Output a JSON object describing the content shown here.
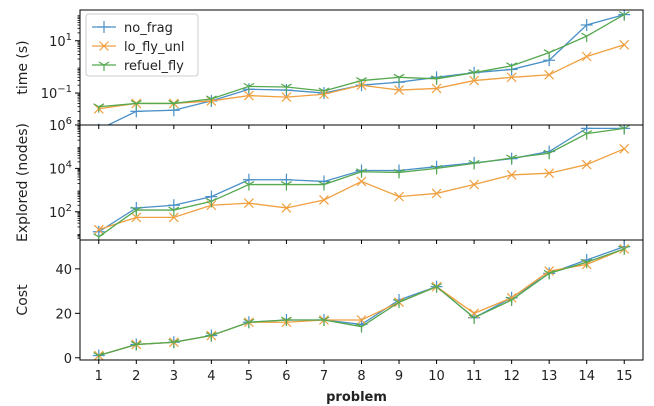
{
  "chart_data": {
    "type": "line",
    "xlabel": "problem",
    "x": [
      1,
      2,
      3,
      4,
      5,
      6,
      7,
      8,
      9,
      10,
      11,
      12,
      13,
      14,
      15
    ],
    "x_ticks": [
      "1",
      "2",
      "3",
      "4",
      "5",
      "6",
      "7",
      "8",
      "9",
      "10",
      "11",
      "12",
      "13",
      "14",
      "15"
    ],
    "xlim": [
      0.5,
      15.5
    ],
    "legend": {
      "position": "top-left",
      "panel": "time"
    },
    "series_styles": [
      {
        "name": "no_frag",
        "color": "#4a90c8",
        "marker": "plus"
      },
      {
        "name": "lo_fly_unl",
        "color": "#f0a040",
        "marker": "x"
      },
      {
        "name": "refuel_fly",
        "color": "#55a84f",
        "marker": "tri_down"
      }
    ],
    "panels": [
      {
        "id": "time",
        "ylabel": "time (s)",
        "yscale": "log",
        "ylim": [
          0.006,
          150
        ],
        "yticks": [
          {
            "value": 0.1,
            "base": "10",
            "exp": "−1"
          },
          {
            "value": 10,
            "base": "10",
            "exp": "1"
          }
        ],
        "series": [
          {
            "name": "no_frag",
            "values": [
              0.004,
              0.02,
              0.022,
              0.05,
              0.14,
              0.13,
              0.1,
              0.2,
              0.26,
              0.4,
              0.6,
              0.8,
              1.8,
              40,
              100
            ]
          },
          {
            "name": "lo_fly_unl",
            "values": [
              0.025,
              0.04,
              0.04,
              0.05,
              0.08,
              0.07,
              0.09,
              0.2,
              0.13,
              0.15,
              0.3,
              0.4,
              0.5,
              2.5,
              7
            ]
          },
          {
            "name": "refuel_fly",
            "values": [
              0.03,
              0.04,
              0.04,
              0.06,
              0.18,
              0.17,
              0.12,
              0.3,
              0.4,
              0.35,
              0.6,
              1.1,
              3.5,
              15,
              100
            ]
          }
        ]
      },
      {
        "id": "explored",
        "ylabel": "Explored (nodes)",
        "yscale": "log",
        "ylim": [
          5,
          1000000
        ],
        "yticks": [
          {
            "value": 100,
            "base": "10",
            "exp": "2"
          },
          {
            "value": 10000,
            "base": "10",
            "exp": "4"
          },
          {
            "value": 1000000,
            "base": "10",
            "exp": "6"
          }
        ],
        "series": [
          {
            "name": "no_frag",
            "values": [
              12,
              150,
              200,
              500,
              3000,
              3000,
              2500,
              8000,
              8000,
              12000,
              18000,
              28000,
              60000,
              700000,
              700000
            ]
          },
          {
            "name": "lo_fly_unl",
            "values": [
              15,
              55,
              55,
              200,
              250,
              150,
              350,
              2500,
              500,
              700,
              1800,
              5000,
              6000,
              15000,
              80000
            ]
          },
          {
            "name": "refuel_fly",
            "values": [
              7,
              120,
              120,
              300,
              1800,
              1800,
              1800,
              7000,
              6500,
              10000,
              17000,
              30000,
              50000,
              400000,
              700000
            ]
          }
        ]
      },
      {
        "id": "cost",
        "ylabel": "Cost",
        "yscale": "linear",
        "ylim": [
          -1,
          53
        ],
        "yticks": [
          {
            "value": 0,
            "label": "0"
          },
          {
            "value": 20,
            "label": "20"
          },
          {
            "value": 40,
            "label": "40"
          }
        ],
        "series": [
          {
            "name": "no_frag",
            "values": [
              1,
              6,
              7,
              10,
              16,
              17,
              17,
              15,
              26,
              32,
              18,
              27,
              38,
              44,
              50
            ]
          },
          {
            "name": "lo_fly_unl",
            "values": [
              1,
              6,
              7,
              10,
              16,
              16,
              17,
              17,
              25,
              32,
              20,
              27,
              39,
              42,
              49
            ]
          },
          {
            "name": "refuel_fly",
            "values": [
              1,
              6,
              7,
              10,
              16,
              17,
              17,
              14,
              25,
              32,
              18,
              26,
              38,
              43,
              49
            ]
          }
        ]
      }
    ]
  }
}
